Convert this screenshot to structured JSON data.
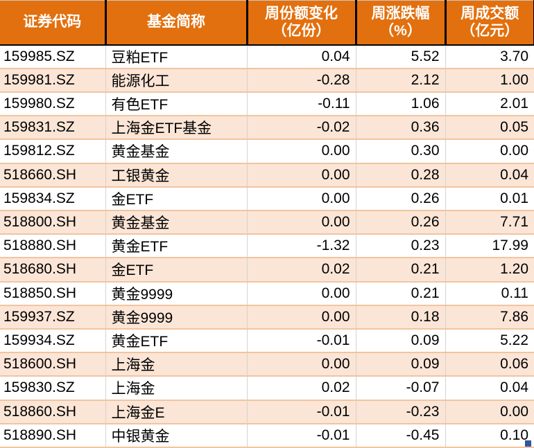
{
  "table": {
    "columns": [
      {
        "key": "code",
        "label": "证券代码",
        "sublabel": ""
      },
      {
        "key": "name",
        "label": "基金简称",
        "sublabel": ""
      },
      {
        "key": "share_change",
        "label": "周份额变化",
        "sublabel": "（亿份）"
      },
      {
        "key": "pct_change",
        "label": "周涨跌幅",
        "sublabel": "（%）"
      },
      {
        "key": "turnover",
        "label": "周成交额",
        "sublabel": "（亿元）"
      }
    ],
    "rows": [
      [
        "159985.SZ",
        "豆粕ETF",
        "0.04",
        "5.52",
        "3.70"
      ],
      [
        "159981.SZ",
        "能源化工",
        "-0.28",
        "2.12",
        "1.00"
      ],
      [
        "159980.SZ",
        "有色ETF",
        "-0.11",
        "1.06",
        "2.01"
      ],
      [
        "159831.SZ",
        "上海金ETF基金",
        "-0.02",
        "0.36",
        "0.05"
      ],
      [
        "159812.SZ",
        "黄金基金",
        "0.00",
        "0.30",
        "0.00"
      ],
      [
        "518660.SH",
        "工银黄金",
        "0.00",
        "0.28",
        "0.04"
      ],
      [
        "159834.SZ",
        "金ETF",
        "0.00",
        "0.26",
        "0.01"
      ],
      [
        "518800.SH",
        "黄金基金",
        "0.00",
        "0.26",
        "7.71"
      ],
      [
        "518880.SH",
        "黄金ETF",
        "-1.32",
        "0.23",
        "17.99"
      ],
      [
        "518680.SH",
        "金ETF",
        "0.02",
        "0.21",
        "1.20"
      ],
      [
        "518850.SH",
        "黄金9999",
        "0.00",
        "0.21",
        "0.11"
      ],
      [
        "159937.SZ",
        "黄金9999",
        "0.00",
        "0.18",
        "7.86"
      ],
      [
        "159934.SZ",
        "黄金ETF",
        "-0.01",
        "0.09",
        "5.22"
      ],
      [
        "518600.SH",
        "上海金",
        "0.00",
        "0.09",
        "0.06"
      ],
      [
        "159830.SZ",
        "上海金",
        "0.02",
        "-0.07",
        "0.04"
      ],
      [
        "518860.SH",
        "上海金E",
        "-0.01",
        "-0.23",
        "0.00"
      ],
      [
        "518890.SH",
        "中银黄金",
        "-0.01",
        "-0.45",
        "0.10"
      ]
    ]
  },
  "colors": {
    "header_bg": "#E2700E",
    "header_text": "#FFFFFF",
    "header_gridline": "#000000",
    "row_alt_bg": "#FBE5D6",
    "row_separator": "#F2C49E",
    "column_divider": "#D3D3D3",
    "data_text": "#000000",
    "fill_handle": "#3155A5"
  }
}
